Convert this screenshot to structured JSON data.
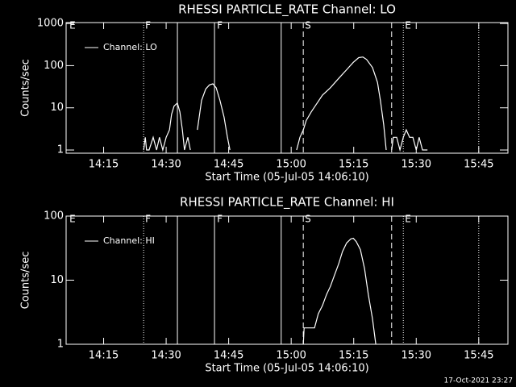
{
  "chart_data": [
    {
      "type": "line",
      "title": "RHESSI PARTICLE_RATE Channel: LO",
      "xlabel": "Start Time (05-Jul-05 14:06:10)",
      "ylabel": "Counts/sec",
      "log_y": true,
      "color": "#ffffff",
      "legend": "upper left",
      "xlim": [
        846,
        952
      ],
      "ylim": [
        0.84,
        1050
      ],
      "xticks": [
        {
          "value": 855,
          "label": "14:15"
        },
        {
          "value": 870,
          "label": "14:30"
        },
        {
          "value": 885,
          "label": "14:45"
        },
        {
          "value": 900,
          "label": "15:00"
        },
        {
          "value": 915,
          "label": "15:15"
        },
        {
          "value": 930,
          "label": "15:30"
        },
        {
          "value": 945,
          "label": "15:45"
        }
      ],
      "yticks": [
        1,
        10,
        100,
        1000
      ],
      "markers": [
        {
          "x": 864.6,
          "style": "dotted"
        },
        {
          "x": 872.7,
          "style": "solid"
        },
        {
          "x": 881.6,
          "style": "solid"
        },
        {
          "x": 897.6,
          "style": "solid"
        },
        {
          "x": 902.9,
          "style": "dashed"
        },
        {
          "x": 924.1,
          "style": "dashed"
        },
        {
          "x": 926.9,
          "style": "dotted"
        },
        {
          "x": 945.0,
          "style": "dotted"
        }
      ],
      "marker_labels": [
        {
          "x": 846.4,
          "text": "E"
        },
        {
          "x": 864.6,
          "text": "F"
        },
        {
          "x": 881.8,
          "text": "F"
        },
        {
          "x": 902.9,
          "text": "S"
        },
        {
          "x": 926.9,
          "text": "E"
        }
      ],
      "series": [
        {
          "name": "Channel: LO",
          "color": "#ffffff",
          "x": [
            864.6,
            865.0,
            865.3,
            865.9,
            866.9,
            867.7,
            868.4,
            869.2,
            870.0,
            870.8,
            871.3,
            871.9,
            872.7,
            873.3,
            873.9,
            874.4,
            875.2,
            875.8,
            876.5,
            877.5,
            878.5,
            879.5,
            880.4,
            881.2,
            882.0,
            882.9,
            883.9,
            884.7,
            885.3,
            890,
            901.3,
            902.1,
            902.9,
            903.6,
            904.8,
            906.0,
            907.5,
            909.4,
            911.4,
            913.3,
            914.9,
            916.2,
            917.2,
            918.1,
            919.5,
            920.7,
            921.4,
            922.2,
            922.8,
            923.5,
            924.1,
            924.5,
            925.3,
            926.1,
            926.9,
            927.6,
            928.4,
            929.2,
            930.0,
            930.7,
            931.5,
            932.7
          ],
          "values": [
            1,
            2,
            1,
            1,
            2,
            1,
            2,
            1,
            2,
            3,
            7,
            11,
            13,
            8,
            3,
            1,
            2,
            1,
            null,
            3,
            15,
            28,
            35,
            37,
            30,
            15,
            6,
            2,
            1,
            null,
            1,
            2,
            3,
            5,
            8,
            12,
            20,
            30,
            50,
            80,
            120,
            155,
            160,
            140,
            90,
            40,
            15,
            4,
            1,
            null,
            1,
            2,
            2,
            1,
            2,
            3,
            2,
            2,
            1,
            2,
            1,
            1
          ]
        }
      ]
    },
    {
      "type": "line",
      "title": "RHESSI PARTICLE_RATE Channel: HI",
      "xlabel": "Start Time (05-Jul-05 14:06:10)",
      "ylabel": "Counts/sec",
      "log_y": true,
      "color": "#ffffff",
      "legend": "upper left",
      "xlim": [
        846,
        952
      ],
      "ylim": [
        1,
        100
      ],
      "xticks": [
        {
          "value": 855,
          "label": "14:15"
        },
        {
          "value": 870,
          "label": "14:30"
        },
        {
          "value": 885,
          "label": "14:45"
        },
        {
          "value": 900,
          "label": "15:00"
        },
        {
          "value": 915,
          "label": "15:15"
        },
        {
          "value": 930,
          "label": "15:30"
        },
        {
          "value": 945,
          "label": "15:45"
        }
      ],
      "yticks": [
        1,
        10,
        100
      ],
      "markers": [
        {
          "x": 864.6,
          "style": "dotted"
        },
        {
          "x": 872.7,
          "style": "solid"
        },
        {
          "x": 881.6,
          "style": "solid"
        },
        {
          "x": 897.6,
          "style": "solid"
        },
        {
          "x": 902.9,
          "style": "dashed"
        },
        {
          "x": 924.1,
          "style": "dashed"
        },
        {
          "x": 926.9,
          "style": "dotted"
        },
        {
          "x": 945.0,
          "style": "dotted"
        }
      ],
      "marker_labels": [
        {
          "x": 846.4,
          "text": "E"
        },
        {
          "x": 864.6,
          "text": "F"
        },
        {
          "x": 881.8,
          "text": "F"
        },
        {
          "x": 902.9,
          "text": "S"
        },
        {
          "x": 926.9,
          "text": "E"
        }
      ],
      "series": [
        {
          "name": "Channel: HI",
          "color": "#ffffff",
          "x": [
            902.9,
            903.1,
            905.6,
            906.5,
            907.5,
            908.5,
            909.4,
            910.4,
            911.4,
            912.3,
            913.3,
            914.3,
            914.9,
            915.6,
            916.6,
            917.6,
            918.5,
            919.5,
            920.3
          ],
          "values": [
            1,
            1.8,
            1.8,
            3,
            4,
            6,
            8,
            12,
            18,
            28,
            38,
            44,
            45,
            40,
            30,
            15,
            6,
            2.5,
            1
          ]
        }
      ]
    }
  ],
  "footer": "17-Oct-2021 23:27"
}
